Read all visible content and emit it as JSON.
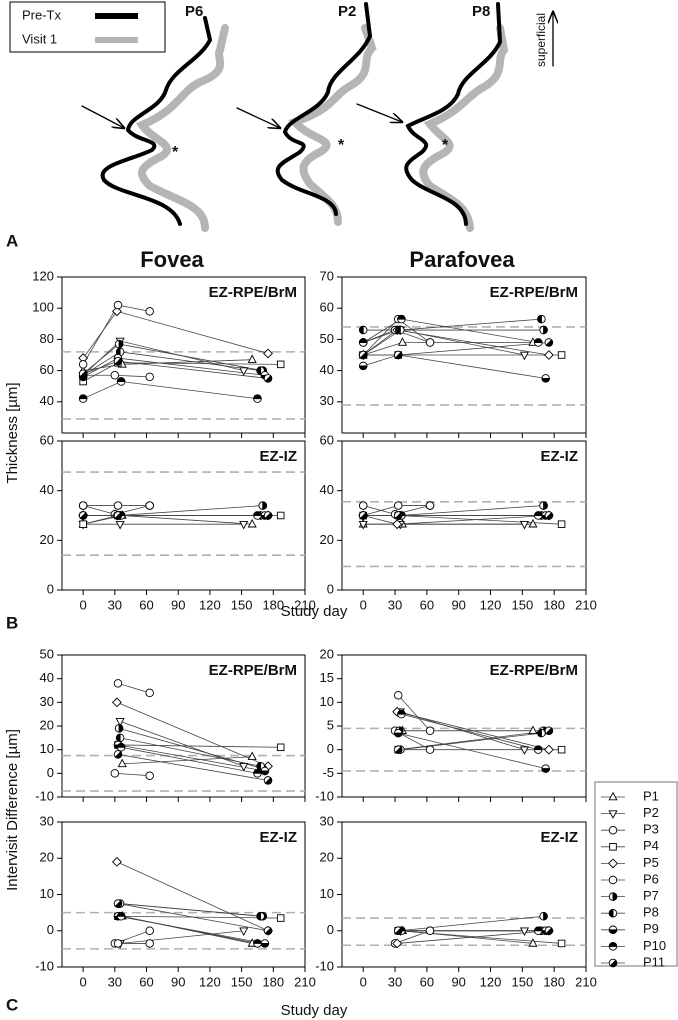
{
  "panel_a": {
    "legend": [
      "Pre-Tx",
      "Visit 1"
    ],
    "profiles": [
      "P6",
      "P2",
      "P8"
    ],
    "orientation": "superficial",
    "annotation": "*"
  },
  "panel_letters": [
    "A",
    "B",
    "C"
  ],
  "headings": [
    "Fovea",
    "Parafovea"
  ],
  "axis_labels": {
    "thickness": "Thickness [µm]",
    "difference": "Intervisit Difference [µm]",
    "study_day_b": "Study day",
    "study_day_c": "Study day"
  },
  "patients": [
    {
      "name": "P1",
      "marker": "triangle-up"
    },
    {
      "name": "P2",
      "marker": "triangle-down"
    },
    {
      "name": "P3",
      "marker": "circle"
    },
    {
      "name": "P4",
      "marker": "square"
    },
    {
      "name": "P5",
      "marker": "diamond"
    },
    {
      "name": "P6",
      "marker": "circle"
    },
    {
      "name": "P7",
      "marker": "half-right"
    },
    {
      "name": "P8",
      "marker": "half-left"
    },
    {
      "name": "P9",
      "marker": "half-bottom"
    },
    {
      "name": "P10",
      "marker": "half-top"
    },
    {
      "name": "P11",
      "marker": "half-diag"
    }
  ],
  "chart_data": [
    {
      "type": "line",
      "title": "EZ-RPE/BrM",
      "xlim": [
        -20,
        210
      ],
      "xticks": [
        0,
        30,
        60,
        90,
        120,
        150,
        180,
        210
      ],
      "ylim": [
        20,
        120
      ],
      "yticks": [
        40,
        60,
        80,
        100,
        120
      ],
      "ref_lines": [
        29,
        72
      ],
      "xtick_labels": false,
      "series": [
        {
          "x": [
            0,
            37,
            160
          ],
          "values": [
            60,
            64,
            67
          ]
        },
        {
          "x": [
            0,
            35,
            152
          ],
          "values": [
            57,
            79,
            60
          ]
        },
        {
          "x": [
            0,
            30,
            63
          ],
          "values": [
            57,
            57,
            56
          ]
        },
        {
          "x": [
            0,
            33,
            187
          ],
          "values": [
            53,
            65,
            64
          ]
        },
        {
          "x": [
            0,
            32,
            175
          ],
          "values": [
            68,
            98,
            71
          ]
        },
        {
          "x": [
            0,
            33,
            63
          ],
          "values": [
            64,
            102,
            98
          ]
        },
        {
          "x": [
            0,
            34,
            170
          ],
          "values": [
            58,
            77,
            60
          ]
        },
        {
          "x": [
            0,
            35,
            168
          ],
          "values": [
            57,
            72,
            60
          ]
        },
        {
          "x": [
            0,
            33,
            172
          ],
          "values": [
            56,
            68,
            57
          ]
        },
        {
          "x": [
            0,
            36,
            165
          ],
          "values": [
            42,
            53,
            42
          ]
        },
        {
          "x": [
            0,
            33,
            175
          ],
          "values": [
            58,
            66,
            55
          ]
        }
      ]
    },
    {
      "type": "line",
      "title": "EZ-RPE/BrM",
      "xlim": [
        -20,
        210
      ],
      "xticks": [
        0,
        30,
        60,
        90,
        120,
        150,
        180,
        210
      ],
      "ylim": [
        20,
        70
      ],
      "yticks": [
        30,
        40,
        50,
        60,
        70
      ],
      "ref_lines": [
        29,
        54
      ],
      "xtick_labels": false,
      "series": [
        {
          "x": [
            0,
            37,
            160
          ],
          "values": [
            45,
            49,
            49
          ]
        },
        {
          "x": [
            0,
            35,
            152
          ],
          "values": [
            45,
            53,
            45
          ]
        },
        {
          "x": [
            0,
            30,
            63
          ],
          "values": [
            49,
            53,
            49
          ]
        },
        {
          "x": [
            0,
            33,
            187
          ],
          "values": [
            45,
            45,
            45
          ]
        },
        {
          "x": [
            0,
            32,
            175
          ],
          "values": [
            45,
            53,
            45
          ]
        },
        {
          "x": [
            0,
            33,
            63
          ],
          "values": [
            45,
            56.5,
            49
          ]
        },
        {
          "x": [
            0,
            34,
            170
          ],
          "values": [
            49,
            53,
            53
          ]
        },
        {
          "x": [
            0,
            35,
            168
          ],
          "values": [
            53,
            53,
            56.5
          ]
        },
        {
          "x": [
            0,
            33,
            172
          ],
          "values": [
            41.5,
            45,
            37.5
          ]
        },
        {
          "x": [
            0,
            36,
            165
          ],
          "values": [
            49,
            56.5,
            49
          ]
        },
        {
          "x": [
            0,
            33,
            175
          ],
          "values": [
            45,
            45,
            49
          ]
        }
      ]
    },
    {
      "type": "line",
      "title": "EZ-IZ",
      "xlim": [
        -20,
        210
      ],
      "xticks": [
        0,
        30,
        60,
        90,
        120,
        150,
        180,
        210
      ],
      "ylim": [
        0,
        60
      ],
      "yticks": [
        0,
        20,
        40,
        60
      ],
      "ref_lines": [
        14,
        47.5
      ],
      "xtick_labels": true,
      "series": [
        {
          "x": [
            0,
            37,
            160
          ],
          "values": [
            26.5,
            30,
            26.5
          ]
        },
        {
          "x": [
            0,
            35,
            152
          ],
          "values": [
            26.5,
            26.5,
            26.5
          ]
        },
        {
          "x": [
            0,
            30,
            63
          ],
          "values": [
            34,
            30.5,
            34
          ]
        },
        {
          "x": [
            0,
            33,
            187
          ],
          "values": [
            26.5,
            30,
            30
          ]
        },
        {
          "x": [
            0,
            32,
            175
          ],
          "values": [
            30,
            30,
            30
          ]
        },
        {
          "x": [
            0,
            33,
            63
          ],
          "values": [
            34,
            34,
            34
          ]
        },
        {
          "x": [
            0,
            34,
            170
          ],
          "values": [
            30,
            30,
            34
          ]
        },
        {
          "x": [
            0,
            35,
            168
          ],
          "values": [
            30,
            30,
            30
          ]
        },
        {
          "x": [
            0,
            33,
            172
          ],
          "values": [
            30,
            30,
            30
          ]
        },
        {
          "x": [
            0,
            36,
            165
          ],
          "values": [
            30,
            30,
            30
          ]
        },
        {
          "x": [
            0,
            33,
            175
          ],
          "values": [
            30,
            30,
            30
          ]
        }
      ]
    },
    {
      "type": "line",
      "title": "EZ-IZ",
      "xlim": [
        -20,
        210
      ],
      "xticks": [
        0,
        30,
        60,
        90,
        120,
        150,
        180,
        210
      ],
      "ylim": [
        0,
        60
      ],
      "yticks": [
        0,
        20,
        40,
        60
      ],
      "ref_lines": [
        9.5,
        35.5
      ],
      "xtick_labels": true,
      "series": [
        {
          "x": [
            0,
            37,
            160
          ],
          "values": [
            26.5,
            26.5,
            26.5
          ]
        },
        {
          "x": [
            0,
            35,
            152
          ],
          "values": [
            26.5,
            26.5,
            26.5
          ]
        },
        {
          "x": [
            0,
            30,
            63
          ],
          "values": [
            34,
            30.5,
            34
          ]
        },
        {
          "x": [
            0,
            33,
            187
          ],
          "values": [
            30,
            30,
            26.5
          ]
        },
        {
          "x": [
            0,
            32,
            175
          ],
          "values": [
            30,
            26.5,
            30
          ]
        },
        {
          "x": [
            0,
            33,
            63
          ],
          "values": [
            30,
            34,
            34
          ]
        },
        {
          "x": [
            0,
            34,
            170
          ],
          "values": [
            30,
            30,
            34
          ]
        },
        {
          "x": [
            0,
            35,
            168
          ],
          "values": [
            30,
            30,
            30
          ]
        },
        {
          "x": [
            0,
            33,
            172
          ],
          "values": [
            30,
            30,
            30
          ]
        },
        {
          "x": [
            0,
            36,
            165
          ],
          "values": [
            30,
            30,
            30
          ]
        },
        {
          "x": [
            0,
            33,
            175
          ],
          "values": [
            30,
            30,
            30
          ]
        }
      ]
    },
    {
      "type": "line",
      "title": "EZ-RPE/BrM",
      "xlim": [
        -20,
        210
      ],
      "xticks": [
        0,
        30,
        60,
        90,
        120,
        150,
        180,
        210
      ],
      "ylim": [
        -10,
        50
      ],
      "yticks": [
        -10,
        0,
        10,
        20,
        30,
        40,
        50
      ],
      "ref_lines": [
        -7.5,
        7.5
      ],
      "xtick_labels": false,
      "series": [
        {
          "x": [
            37,
            160
          ],
          "values": [
            4,
            7
          ]
        },
        {
          "x": [
            35,
            152
          ],
          "values": [
            22,
            3
          ]
        },
        {
          "x": [
            30,
            63
          ],
          "values": [
            0,
            -1
          ]
        },
        {
          "x": [
            33,
            187
          ],
          "values": [
            12,
            11
          ]
        },
        {
          "x": [
            32,
            175
          ],
          "values": [
            30,
            3
          ]
        },
        {
          "x": [
            33,
            63
          ],
          "values": [
            38,
            34
          ]
        },
        {
          "x": [
            34,
            170
          ],
          "values": [
            19,
            2
          ]
        },
        {
          "x": [
            35,
            168
          ],
          "values": [
            15,
            3
          ]
        },
        {
          "x": [
            33,
            172
          ],
          "values": [
            12,
            1
          ]
        },
        {
          "x": [
            36,
            165
          ],
          "values": [
            11,
            0
          ]
        },
        {
          "x": [
            33,
            175
          ],
          "values": [
            8,
            -3
          ]
        }
      ]
    },
    {
      "type": "line",
      "title": "EZ-RPE/BrM",
      "xlim": [
        -20,
        210
      ],
      "xticks": [
        0,
        30,
        60,
        90,
        120,
        150,
        180,
        210
      ],
      "ylim": [
        -10,
        20
      ],
      "yticks": [
        -10,
        -5,
        0,
        5,
        10,
        15,
        20
      ],
      "ref_lines": [
        -4.5,
        4.5
      ],
      "xtick_labels": false,
      "series": [
        {
          "x": [
            37,
            160
          ],
          "values": [
            4,
            4
          ]
        },
        {
          "x": [
            35,
            152
          ],
          "values": [
            8,
            0
          ]
        },
        {
          "x": [
            30,
            63
          ],
          "values": [
            4,
            0
          ]
        },
        {
          "x": [
            33,
            187
          ],
          "values": [
            0,
            0
          ]
        },
        {
          "x": [
            32,
            175
          ],
          "values": [
            8,
            0
          ]
        },
        {
          "x": [
            33,
            63
          ],
          "values": [
            11.5,
            4
          ]
        },
        {
          "x": [
            34,
            170
          ],
          "values": [
            4,
            4
          ]
        },
        {
          "x": [
            35,
            168
          ],
          "values": [
            0,
            3.5
          ]
        },
        {
          "x": [
            33,
            172
          ],
          "values": [
            3.5,
            -4
          ]
        },
        {
          "x": [
            36,
            165
          ],
          "values": [
            7.5,
            0
          ]
        },
        {
          "x": [
            33,
            175
          ],
          "values": [
            0,
            4
          ]
        }
      ]
    },
    {
      "type": "line",
      "title": "EZ-IZ",
      "xlim": [
        -20,
        210
      ],
      "xticks": [
        0,
        30,
        60,
        90,
        120,
        150,
        180,
        210
      ],
      "ylim": [
        -10,
        30
      ],
      "yticks": [
        -10,
        0,
        10,
        20,
        30
      ],
      "ref_lines": [
        -5,
        5
      ],
      "xtick_labels": true,
      "series": [
        {
          "x": [
            37,
            160
          ],
          "values": [
            4,
            -3.5
          ]
        },
        {
          "x": [
            35,
            152
          ],
          "values": [
            -3.5,
            0
          ]
        },
        {
          "x": [
            30,
            63
          ],
          "values": [
            -3.5,
            0
          ]
        },
        {
          "x": [
            33,
            187
          ],
          "values": [
            4,
            3.5
          ]
        },
        {
          "x": [
            32,
            175
          ],
          "values": [
            19,
            0
          ]
        },
        {
          "x": [
            33,
            63
          ],
          "values": [
            -3.5,
            -3.5
          ]
        },
        {
          "x": [
            34,
            170
          ],
          "values": [
            7.5,
            4
          ]
        },
        {
          "x": [
            35,
            168
          ],
          "values": [
            7.5,
            4
          ]
        },
        {
          "x": [
            33,
            172
          ],
          "values": [
            4,
            -3.5
          ]
        },
        {
          "x": [
            36,
            165
          ],
          "values": [
            4,
            -3.5
          ]
        },
        {
          "x": [
            33,
            175
          ],
          "values": [
            7.5,
            0
          ]
        }
      ]
    },
    {
      "type": "line",
      "title": "EZ-IZ",
      "xlim": [
        -20,
        210
      ],
      "xticks": [
        0,
        30,
        60,
        90,
        120,
        150,
        180,
        210
      ],
      "ylim": [
        -10,
        30
      ],
      "yticks": [
        -10,
        0,
        10,
        20,
        30
      ],
      "ref_lines": [
        -4,
        3.5
      ],
      "xtick_labels": true,
      "series": [
        {
          "x": [
            37,
            160
          ],
          "values": [
            0,
            -3.5
          ]
        },
        {
          "x": [
            35,
            152
          ],
          "values": [
            0,
            0
          ]
        },
        {
          "x": [
            30,
            63
          ],
          "values": [
            -3.5,
            0
          ]
        },
        {
          "x": [
            33,
            187
          ],
          "values": [
            0,
            -3.5
          ]
        },
        {
          "x": [
            32,
            175
          ],
          "values": [
            -3.5,
            0
          ]
        },
        {
          "x": [
            33,
            63
          ],
          "values": [
            0,
            0
          ]
        },
        {
          "x": [
            34,
            170
          ],
          "values": [
            0,
            4
          ]
        },
        {
          "x": [
            35,
            168
          ],
          "values": [
            0,
            0
          ]
        },
        {
          "x": [
            33,
            172
          ],
          "values": [
            0,
            0
          ]
        },
        {
          "x": [
            36,
            165
          ],
          "values": [
            0,
            0
          ]
        },
        {
          "x": [
            33,
            175
          ],
          "values": [
            0,
            0
          ]
        }
      ]
    }
  ]
}
